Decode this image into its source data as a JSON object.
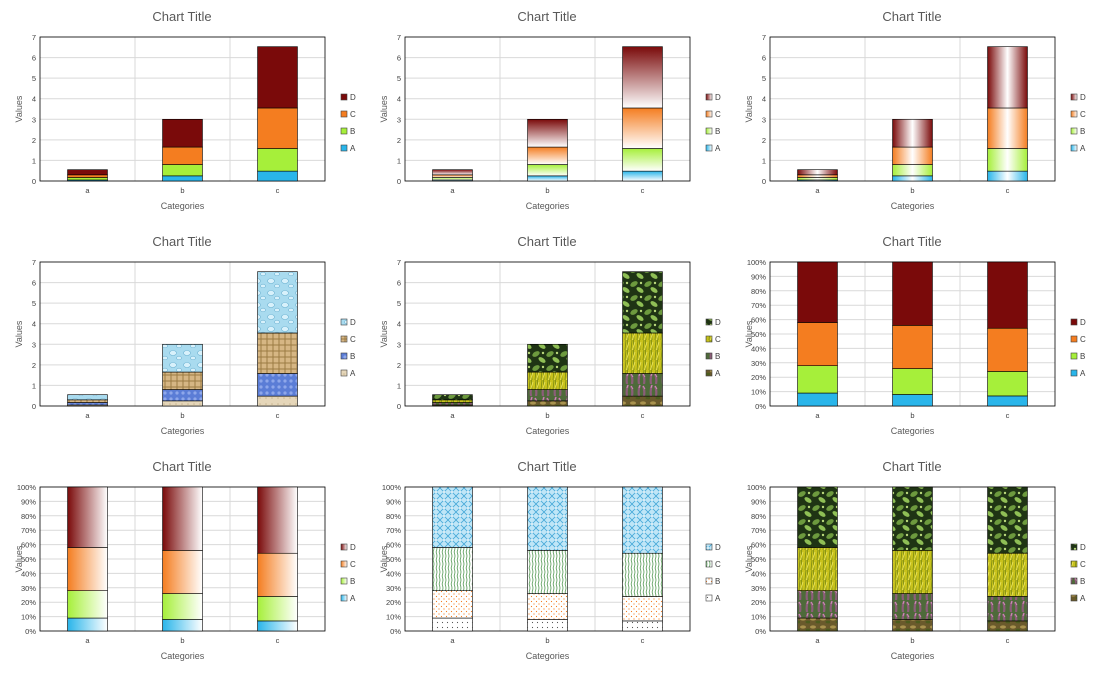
{
  "colors": {
    "A": "#29b5ea",
    "B": "#a6ef3a",
    "C": "#f47d20",
    "D": "#7a0a0a",
    "texture_blue": "#a9dbef",
    "texture_tan": "#d6b684",
    "texture_indigo": "#5b7dd6",
    "texture_beige": "#e5d6b9",
    "photo_green": "#3b6b26",
    "photo_yellow": "#c8c21c",
    "photo_pink": "#8c5d79",
    "photo_earth": "#6a5a2c"
  },
  "chart_data": [
    {
      "type": "bar",
      "stacked": true,
      "fill_style": "solid",
      "title": "Chart Title",
      "xlabel": "Categories",
      "ylabel": "Values",
      "categories": [
        "a",
        "b",
        "c"
      ],
      "ylim": [
        0,
        7
      ],
      "yticks": [
        "0",
        "1",
        "2",
        "3",
        "4",
        "5",
        "6",
        "7"
      ],
      "series": [
        {
          "name": "A",
          "values": [
            0.05,
            0.25,
            0.48
          ]
        },
        {
          "name": "B",
          "values": [
            0.12,
            0.55,
            1.1
          ]
        },
        {
          "name": "C",
          "values": [
            0.13,
            0.85,
            1.97
          ]
        },
        {
          "name": "D",
          "values": [
            0.25,
            1.35,
            2.98
          ]
        }
      ],
      "legend": "right",
      "grid": true
    },
    {
      "type": "bar",
      "stacked": true,
      "fill_style": "gradient-fade-down",
      "title": "Chart Title",
      "xlabel": "Categories",
      "ylabel": "Values",
      "categories": [
        "a",
        "b",
        "c"
      ],
      "ylim": [
        0,
        7
      ],
      "yticks": [
        "0",
        "1",
        "2",
        "3",
        "4",
        "5",
        "6",
        "7"
      ],
      "series": [
        {
          "name": "A",
          "values": [
            0.05,
            0.25,
            0.48
          ]
        },
        {
          "name": "B",
          "values": [
            0.12,
            0.55,
            1.1
          ]
        },
        {
          "name": "C",
          "values": [
            0.13,
            0.85,
            1.97
          ]
        },
        {
          "name": "D",
          "values": [
            0.25,
            1.35,
            2.98
          ]
        }
      ],
      "legend": "right",
      "grid": true
    },
    {
      "type": "bar",
      "stacked": true,
      "fill_style": "gradient-horizontal-center",
      "title": "Chart Title",
      "xlabel": "Categories",
      "ylabel": "Values",
      "categories": [
        "a",
        "b",
        "c"
      ],
      "ylim": [
        0,
        7
      ],
      "yticks": [
        "0",
        "1",
        "2",
        "3",
        "4",
        "5",
        "6",
        "7"
      ],
      "series": [
        {
          "name": "A",
          "values": [
            0.05,
            0.25,
            0.48
          ]
        },
        {
          "name": "B",
          "values": [
            0.12,
            0.55,
            1.1
          ]
        },
        {
          "name": "C",
          "values": [
            0.13,
            0.85,
            1.97
          ]
        },
        {
          "name": "D",
          "values": [
            0.25,
            1.35,
            2.98
          ]
        }
      ],
      "legend": "right",
      "grid": true
    },
    {
      "type": "bar",
      "stacked": true,
      "fill_style": "texture",
      "title": "Chart Title",
      "xlabel": "Categories",
      "ylabel": "Values",
      "categories": [
        "a",
        "b",
        "c"
      ],
      "ylim": [
        0,
        7
      ],
      "yticks": [
        "0",
        "1",
        "2",
        "3",
        "4",
        "5",
        "6",
        "7"
      ],
      "series": [
        {
          "name": "A",
          "values": [
            0.05,
            0.25,
            0.48
          ]
        },
        {
          "name": "B",
          "values": [
            0.12,
            0.55,
            1.1
          ]
        },
        {
          "name": "C",
          "values": [
            0.13,
            0.85,
            1.97
          ]
        },
        {
          "name": "D",
          "values": [
            0.25,
            1.35,
            2.98
          ]
        }
      ],
      "legend": "right",
      "grid": true
    },
    {
      "type": "bar",
      "stacked": true,
      "fill_style": "picture",
      "title": "Chart Title",
      "xlabel": "Categories",
      "ylabel": "Values",
      "categories": [
        "a",
        "b",
        "c"
      ],
      "ylim": [
        0,
        7
      ],
      "yticks": [
        "0",
        "1",
        "2",
        "3",
        "4",
        "5",
        "6",
        "7"
      ],
      "series": [
        {
          "name": "A",
          "values": [
            0.05,
            0.25,
            0.48
          ]
        },
        {
          "name": "B",
          "values": [
            0.12,
            0.55,
            1.1
          ]
        },
        {
          "name": "C",
          "values": [
            0.13,
            0.85,
            1.97
          ]
        },
        {
          "name": "D",
          "values": [
            0.25,
            1.35,
            2.98
          ]
        }
      ],
      "legend": "right",
      "grid": true
    },
    {
      "type": "bar",
      "stacked": true,
      "percent": true,
      "fill_style": "solid",
      "title": "Chart Title",
      "xlabel": "Categories",
      "ylabel": "Values",
      "categories": [
        "a",
        "b",
        "c"
      ],
      "ylim": [
        0,
        100
      ],
      "yticks": [
        "0%",
        "10%",
        "20%",
        "30%",
        "40%",
        "50%",
        "60%",
        "70%",
        "80%",
        "90%",
        "100%"
      ],
      "series": [
        {
          "name": "A",
          "values": [
            9,
            8,
            7
          ]
        },
        {
          "name": "B",
          "values": [
            19,
            18,
            17
          ]
        },
        {
          "name": "C",
          "values": [
            30,
            30,
            30
          ]
        },
        {
          "name": "D",
          "values": [
            42,
            44,
            46
          ]
        }
      ],
      "legend": "right",
      "grid": true
    },
    {
      "type": "bar",
      "stacked": true,
      "percent": true,
      "fill_style": "gradient-fade-right",
      "title": "Chart Title",
      "xlabel": "Categories",
      "ylabel": "Values",
      "categories": [
        "a",
        "b",
        "c"
      ],
      "ylim": [
        0,
        100
      ],
      "yticks": [
        "0%",
        "10%",
        "20%",
        "30%",
        "40%",
        "50%",
        "60%",
        "70%",
        "80%",
        "90%",
        "100%"
      ],
      "series": [
        {
          "name": "A",
          "values": [
            9,
            8,
            7
          ]
        },
        {
          "name": "B",
          "values": [
            19,
            18,
            17
          ]
        },
        {
          "name": "C",
          "values": [
            30,
            30,
            30
          ]
        },
        {
          "name": "D",
          "values": [
            42,
            44,
            46
          ]
        }
      ],
      "legend": "right",
      "grid": true
    },
    {
      "type": "bar",
      "stacked": true,
      "percent": true,
      "fill_style": "pattern",
      "title": "Chart Title",
      "xlabel": "Categories",
      "ylabel": "Values",
      "categories": [
        "a",
        "b",
        "c"
      ],
      "ylim": [
        0,
        100
      ],
      "yticks": [
        "0%",
        "10%",
        "20%",
        "30%",
        "40%",
        "50%",
        "60%",
        "70%",
        "80%",
        "90%",
        "100%"
      ],
      "series": [
        {
          "name": "A",
          "values": [
            9,
            8,
            7
          ]
        },
        {
          "name": "B",
          "values": [
            19,
            18,
            17
          ]
        },
        {
          "name": "C",
          "values": [
            30,
            30,
            30
          ]
        },
        {
          "name": "D",
          "values": [
            42,
            44,
            46
          ]
        }
      ],
      "legend": "right",
      "grid": true
    },
    {
      "type": "bar",
      "stacked": true,
      "percent": true,
      "fill_style": "picture",
      "title": "Chart Title",
      "xlabel": "Categories",
      "ylabel": "Values",
      "categories": [
        "a",
        "b",
        "c"
      ],
      "ylim": [
        0,
        100
      ],
      "yticks": [
        "0%",
        "10%",
        "20%",
        "30%",
        "40%",
        "50%",
        "60%",
        "70%",
        "80%",
        "90%",
        "100%"
      ],
      "series": [
        {
          "name": "A",
          "values": [
            9,
            8,
            7
          ]
        },
        {
          "name": "B",
          "values": [
            19,
            18,
            17
          ]
        },
        {
          "name": "C",
          "values": [
            30,
            30,
            30
          ]
        },
        {
          "name": "D",
          "values": [
            42,
            44,
            46
          ]
        }
      ],
      "legend": "right",
      "grid": true
    }
  ]
}
